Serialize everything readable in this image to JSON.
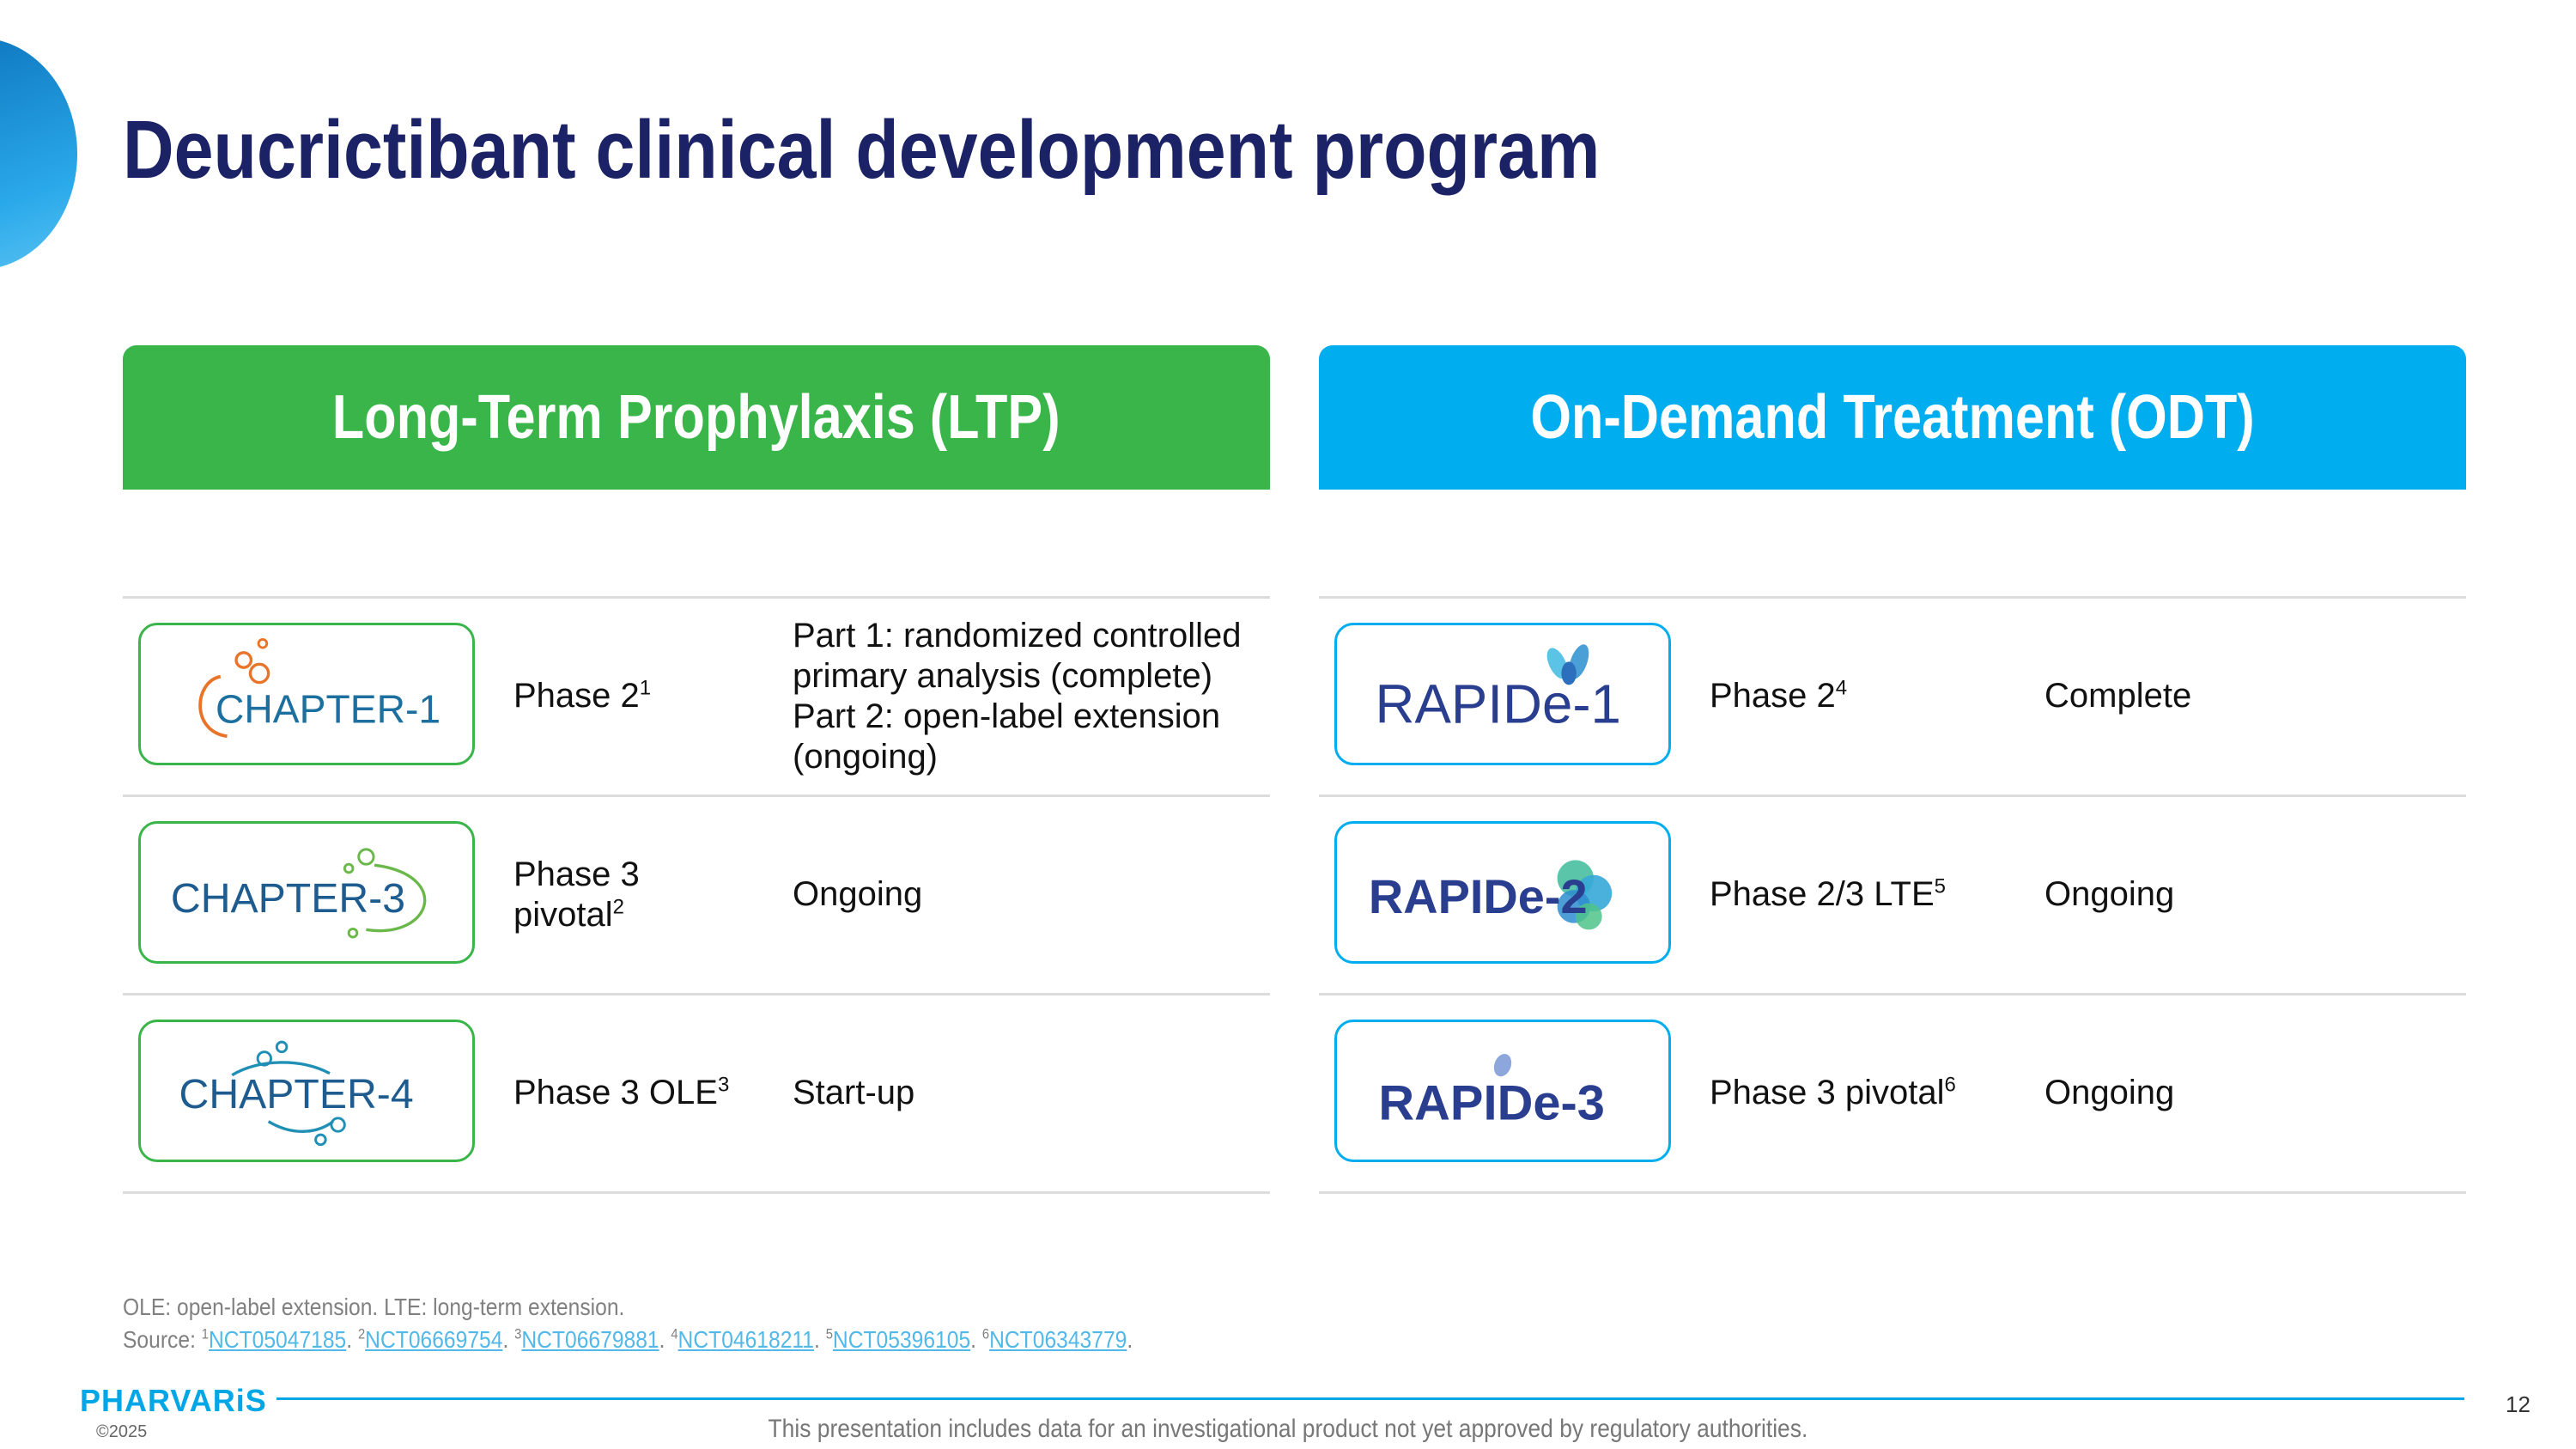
{
  "title": "Deucrictibant clinical development program",
  "colors": {
    "ltp_header": "#39b54a",
    "odt_header": "#00aeef",
    "title": "#1b2265",
    "rule": "#00a6e6"
  },
  "ltp": {
    "header": "Long-Term Prophylaxis (LTP)",
    "rows": [
      {
        "logo": "CHAPTER-1",
        "phase": "Phase 2",
        "phase_sup": "1",
        "status_lines": [
          "Part 1: randomized controlled",
          "primary analysis (complete)",
          "Part 2: open-label extension",
          "(ongoing)"
        ]
      },
      {
        "logo": "CHAPTER-3",
        "phase_lines": [
          "Phase 3",
          "pivotal"
        ],
        "phase_sup": "2",
        "status": "Ongoing"
      },
      {
        "logo": "CHAPTER-4",
        "phase": "Phase 3 OLE",
        "phase_sup": "3",
        "status": "Start-up"
      }
    ]
  },
  "odt": {
    "header": "On-Demand Treatment (ODT)",
    "rows": [
      {
        "logo": "RAPIDe-1",
        "phase": "Phase 2",
        "phase_sup": "4",
        "status": "Complete"
      },
      {
        "logo": "RAPIDe-2",
        "phase": "Phase 2/3 LTE",
        "phase_sup": "5",
        "status": "Ongoing"
      },
      {
        "logo": "RAPIDe-3",
        "phase": "Phase 3 pivotal",
        "phase_sup": "6",
        "status": "Ongoing"
      }
    ]
  },
  "footer": {
    "abbrev": "OLE: open-label extension. LTE: long-term extension.",
    "source_label": "Source: ",
    "sources": [
      {
        "sup": "1",
        "id": "NCT05047185"
      },
      {
        "sup": "2",
        "id": "NCT06669754"
      },
      {
        "sup": "3",
        "id": "NCT06679881"
      },
      {
        "sup": "4",
        "id": "NCT04618211"
      },
      {
        "sup": "5",
        "id": "NCT05396105"
      },
      {
        "sup": "6",
        "id": "NCT06343779"
      }
    ],
    "brand": "PHARVARiS",
    "copyright": "©2025",
    "disclaimer": "This presentation includes data for an investigational product not yet approved by regulatory authorities.",
    "page_number": "12"
  }
}
